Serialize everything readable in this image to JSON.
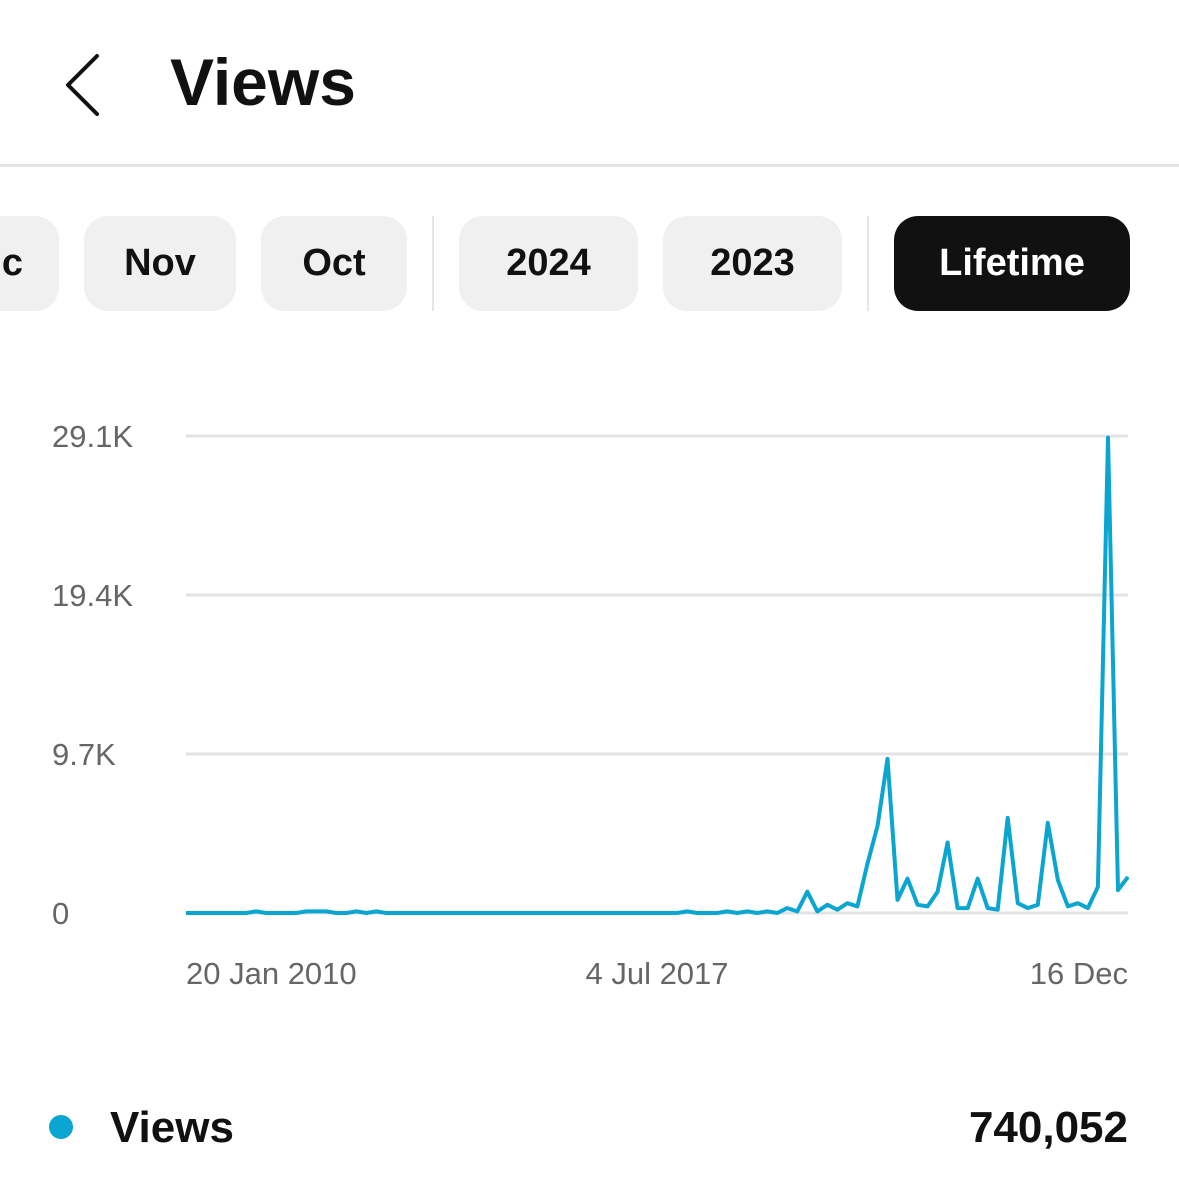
{
  "header": {
    "title": "Views"
  },
  "tabs": [
    {
      "label": "c"
    },
    {
      "label": "Nov"
    },
    {
      "label": "Oct"
    },
    {
      "label": "2024"
    },
    {
      "label": "2023"
    },
    {
      "label": "Lifetime",
      "active": true
    }
  ],
  "chart_data": {
    "type": "line",
    "categories": [
      "20 Jan 2010",
      null,
      null,
      null,
      null,
      null,
      null,
      null,
      null,
      null,
      null,
      null,
      null,
      null,
      null,
      null,
      null,
      null,
      null,
      null,
      null,
      null,
      null,
      null,
      null,
      null,
      null,
      null,
      null,
      null,
      null,
      null,
      null,
      null,
      null,
      null,
      null,
      null,
      null,
      null,
      null,
      null,
      null,
      null,
      null,
      null,
      null,
      "4 Jul 2017",
      null,
      null,
      null,
      null,
      null,
      null,
      null,
      null,
      null,
      null,
      null,
      null,
      null,
      null,
      null,
      null,
      null,
      null,
      null,
      null,
      null,
      null,
      null,
      null,
      null,
      null,
      null,
      null,
      null,
      null,
      null,
      null,
      null,
      null,
      null,
      null,
      null,
      null,
      null,
      null,
      null,
      null,
      null,
      null,
      null,
      null,
      "16 Dec"
    ],
    "series": [
      {
        "name": "Views",
        "color": "#0aa5d0",
        "values": [
          0,
          0,
          0,
          0,
          0,
          0,
          0,
          100,
          0,
          0,
          0,
          0,
          100,
          100,
          100,
          0,
          0,
          100,
          0,
          100,
          0,
          0,
          0,
          0,
          0,
          0,
          0,
          0,
          0,
          0,
          0,
          0,
          0,
          0,
          0,
          0,
          0,
          0,
          0,
          0,
          0,
          0,
          0,
          0,
          0,
          0,
          0,
          0,
          0,
          0,
          100,
          0,
          0,
          0,
          100,
          0,
          100,
          0,
          100,
          0,
          300,
          100,
          1300,
          100,
          500,
          200,
          600,
          400,
          3000,
          5300,
          9400,
          800,
          2100,
          500,
          400,
          1300,
          4300,
          300,
          300,
          2100,
          300,
          200,
          5800,
          600,
          300,
          500,
          5500,
          2000,
          400,
          600,
          300,
          1600,
          29000,
          1400,
          2200
        ]
      }
    ],
    "ylim": [
      0,
      29100
    ],
    "yticks": [
      {
        "value": 0,
        "label": "0"
      },
      {
        "value": 9700,
        "label": "9.7K"
      },
      {
        "value": 19400,
        "label": "19.4K"
      },
      {
        "value": 29100,
        "label": "29.1K"
      }
    ],
    "grid": true
  },
  "summary": {
    "total": "740,052"
  }
}
